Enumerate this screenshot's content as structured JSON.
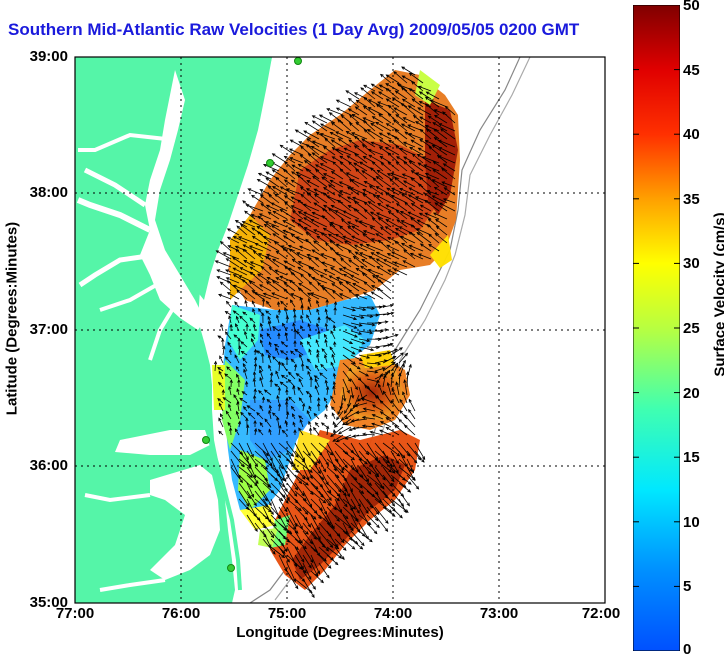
{
  "title": "Southern Mid-Atlantic Raw Velocities (1 Day Avg) 2009/05/05 0200 GMT",
  "xaxis": {
    "label": "Longitude (Degrees:Minutes)",
    "ticks": [
      "77:00",
      "76:00",
      "75:00",
      "74:00",
      "73:00",
      "72:00"
    ]
  },
  "yaxis": {
    "label": "Latitude (Degrees:Minutes)",
    "ticks": [
      "39:00",
      "38:00",
      "37:00",
      "36:00",
      "35:00"
    ]
  },
  "colorbar": {
    "label": "Surface Velocity (cm/s)",
    "ticks": [
      "50",
      "45",
      "40",
      "35",
      "30",
      "25",
      "20",
      "15",
      "10",
      "5",
      "0"
    ],
    "range": [
      0,
      50
    ],
    "colormap": "jet"
  },
  "colors": {
    "land": "#55f5a8",
    "ocean": "#ffffff",
    "title": "#1a1adc",
    "vectors": "#000000"
  },
  "map_extent": {
    "lon": [
      "77:00 W",
      "72:00 W"
    ],
    "lat": [
      "35:00 N",
      "39:00 N"
    ]
  }
}
